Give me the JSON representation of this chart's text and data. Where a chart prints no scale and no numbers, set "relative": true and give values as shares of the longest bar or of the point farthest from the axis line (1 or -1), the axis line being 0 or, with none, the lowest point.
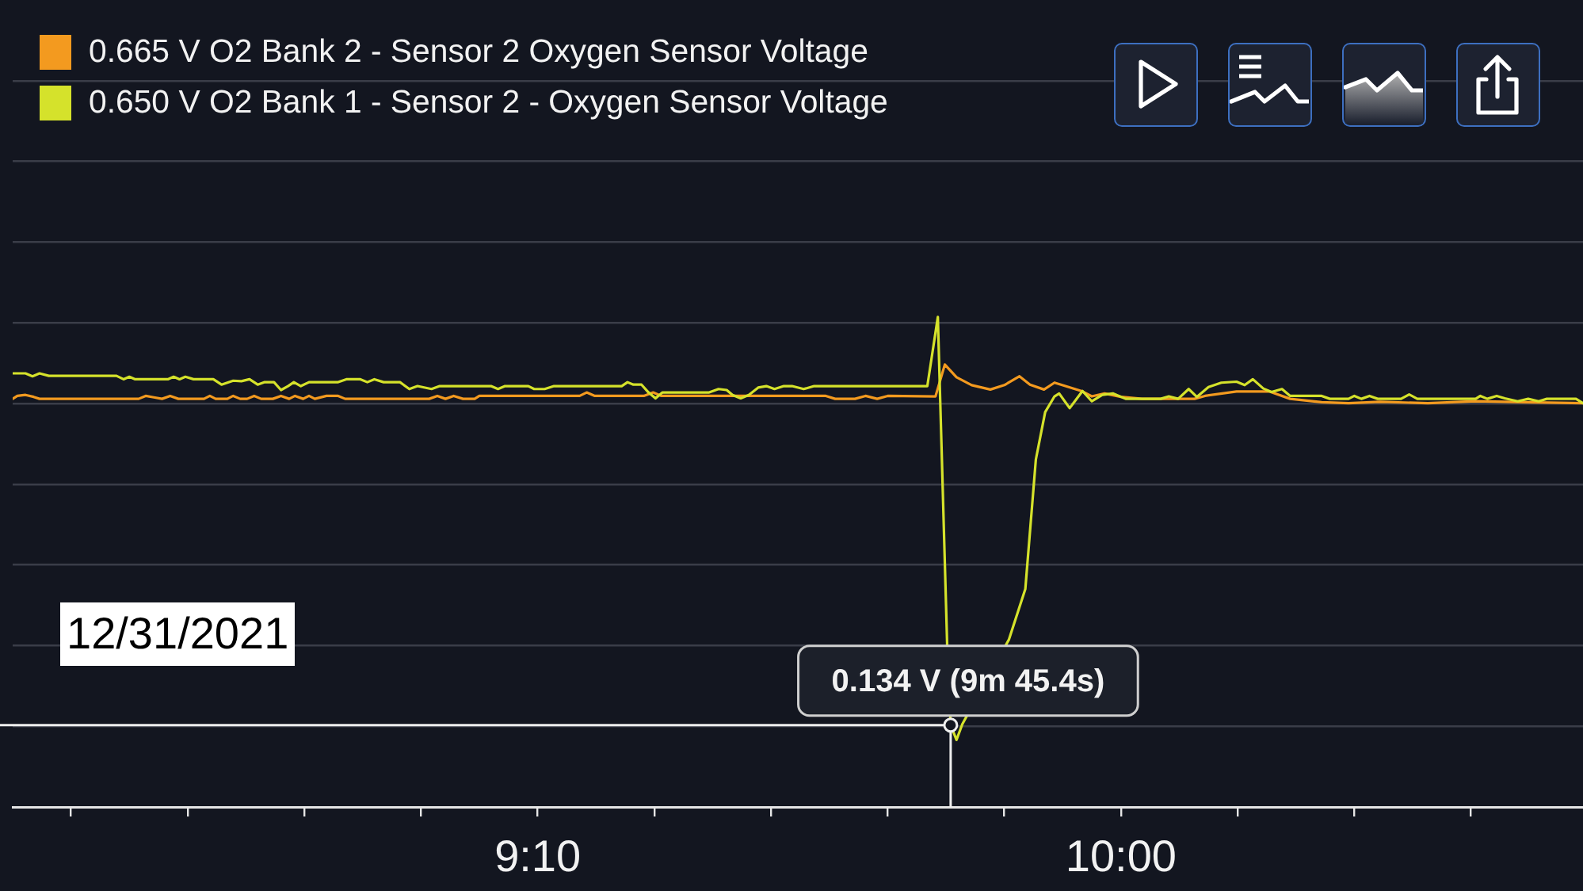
{
  "chart_data": {
    "type": "line",
    "relative": true,
    "series": [
      {
        "name": "0.665 V O2 Bank 2 - Sensor 2 Oxygen Sensor Voltage",
        "color": "#f39a1f",
        "x": [
          505.0,
          505.4,
          506.1,
          506.8,
          507.3,
          515.8,
          516.4,
          517.1,
          517.8,
          518.5,
          519.2,
          521.4,
          521.9,
          522.4,
          523.4,
          523.9,
          524.5,
          525.1,
          525.7,
          526.3,
          527.3,
          528.0,
          528.7,
          529.2,
          529.9,
          530.4,
          530.9,
          531.9,
          532.9,
          533.5,
          540.7,
          541.4,
          542.1,
          542.8,
          543.6,
          544.6,
          545.0,
          553.6,
          554.2,
          554.9,
          559.1,
          559.9,
          560.6,
          567.4,
          574.7,
          575.5,
          577.2,
          578.1,
          579.1,
          580.0,
          584.1,
          584.9,
          585.9,
          587.2,
          588.8,
          590.0,
          591.3,
          592.2,
          593.4,
          594.3,
          595.4,
          596.6,
          597.5,
          598.6,
          600.0,
          601.8,
          606.3,
          607.2,
          609.9,
          612.7,
          614.5,
          617.2,
          619.5,
          622.2,
          626.3,
          630.4,
          634.5,
          639.6
        ],
        "values": [
          0.833,
          0.839,
          0.841,
          0.837,
          0.833,
          0.833,
          0.839,
          0.836,
          0.833,
          0.839,
          0.833,
          0.833,
          0.839,
          0.833,
          0.833,
          0.839,
          0.833,
          0.833,
          0.839,
          0.833,
          0.833,
          0.839,
          0.833,
          0.839,
          0.833,
          0.839,
          0.833,
          0.839,
          0.839,
          0.833,
          0.833,
          0.839,
          0.833,
          0.839,
          0.833,
          0.833,
          0.839,
          0.839,
          0.846,
          0.839,
          0.839,
          0.846,
          0.839,
          0.839,
          0.839,
          0.833,
          0.833,
          0.839,
          0.833,
          0.839,
          0.838,
          0.903,
          0.877,
          0.861,
          0.852,
          0.861,
          0.879,
          0.862,
          0.852,
          0.866,
          0.858,
          0.849,
          0.838,
          0.844,
          0.837,
          0.833,
          0.833,
          0.839,
          0.848,
          0.848,
          0.833,
          0.826,
          0.824,
          0.827,
          0.824,
          0.828,
          0.826,
          0.824
        ]
      },
      {
        "name": "0.650 V O2 Bank 1 - Sensor 2 - Oxygen Sensor Voltage",
        "color": "#d5e22b",
        "x": [
          505.0,
          506.1,
          506.7,
          507.3,
          508.1,
          513.9,
          514.5,
          515.0,
          515.5,
          518.3,
          518.8,
          519.3,
          519.8,
          520.5,
          522.2,
          522.9,
          523.9,
          524.6,
          525.3,
          526.0,
          526.6,
          527.4,
          528.0,
          528.6,
          529.1,
          529.7,
          530.4,
          532.9,
          533.6,
          534.8,
          535.4,
          536.0,
          536.8,
          538.2,
          539.0,
          539.7,
          540.9,
          541.6,
          546.0,
          546.6,
          547.2,
          549.2,
          549.7,
          550.6,
          551.4,
          557.2,
          557.7,
          558.2,
          558.9,
          559.5,
          560.1,
          560.7,
          564.7,
          565.5,
          566.2,
          566.7,
          567.4,
          568.1,
          568.9,
          569.6,
          570.3,
          571.1,
          571.8,
          572.8,
          573.7,
          580.0,
          583.4,
          584.3,
          585.1,
          585.4,
          585.9,
          586.4,
          590.4,
          591.8,
          592.7,
          593.5,
          594.3,
          594.7,
          595.6,
          596.7,
          597.5,
          598.4,
          599.3,
          600.4,
          603.4,
          604.1,
          604.9,
          605.8,
          606.5,
          607.5,
          608.6,
          609.9,
          610.6,
          611.3,
          612.2,
          612.9,
          613.8,
          614.5,
          617.2,
          617.9,
          619.5,
          620.0,
          620.6,
          621.3,
          622.0,
          624.0,
          624.7,
          625.4,
          630.4,
          630.8,
          631.4,
          632.2,
          632.9,
          634.0,
          634.9,
          635.8,
          636.5,
          639.0,
          639.6
        ],
        "values": [
          0.885,
          0.885,
          0.879,
          0.885,
          0.88,
          0.88,
          0.873,
          0.878,
          0.873,
          0.873,
          0.878,
          0.873,
          0.878,
          0.873,
          0.873,
          0.862,
          0.87,
          0.869,
          0.873,
          0.862,
          0.867,
          0.867,
          0.851,
          0.859,
          0.867,
          0.859,
          0.867,
          0.867,
          0.873,
          0.873,
          0.867,
          0.873,
          0.867,
          0.867,
          0.853,
          0.859,
          0.853,
          0.859,
          0.859,
          0.853,
          0.859,
          0.859,
          0.853,
          0.853,
          0.859,
          0.859,
          0.867,
          0.862,
          0.862,
          0.846,
          0.834,
          0.846,
          0.846,
          0.853,
          0.851,
          0.841,
          0.834,
          0.841,
          0.856,
          0.859,
          0.853,
          0.859,
          0.859,
          0.853,
          0.859,
          0.859,
          0.859,
          1,
          0.331,
          0.167,
          0.137,
          0.169,
          0.342,
          0.445,
          0.709,
          0.806,
          0.838,
          0.844,
          0.814,
          0.849,
          0.828,
          0.841,
          0.844,
          0.833,
          0.833,
          0.838,
          0.833,
          0.853,
          0.837,
          0.857,
          0.866,
          0.868,
          0.861,
          0.873,
          0.854,
          0.847,
          0.853,
          0.839,
          0.839,
          0.833,
          0.833,
          0.839,
          0.833,
          0.839,
          0.833,
          0.833,
          0.842,
          0.833,
          0.833,
          0.839,
          0.833,
          0.839,
          0.834,
          0.828,
          0.833,
          0.828,
          0.833,
          0.833,
          0.824
        ]
      }
    ],
    "xlim": [
      505,
      639.6
    ],
    "xticks": [
      {
        "value": 510,
        "label": null
      },
      {
        "value": 520,
        "label": null
      },
      {
        "value": 530,
        "label": null
      },
      {
        "value": 540,
        "label": null
      },
      {
        "value": 550,
        "label": "9:10"
      },
      {
        "value": 560,
        "label": null
      },
      {
        "value": 570,
        "label": null
      },
      {
        "value": 580,
        "label": null
      },
      {
        "value": 590,
        "label": null
      },
      {
        "value": 600,
        "label": "10:00"
      },
      {
        "value": 610,
        "label": null
      },
      {
        "value": 620,
        "label": null
      },
      {
        "value": 630,
        "label": null
      }
    ],
    "tick_labels": "x",
    "grid": "y",
    "legend": "top left",
    "annotations": [
      {
        "text": "0.134 V (9m 45.4s)",
        "x": 585.4,
        "y": 0.167
      },
      "12/31/2021"
    ]
  }
}
